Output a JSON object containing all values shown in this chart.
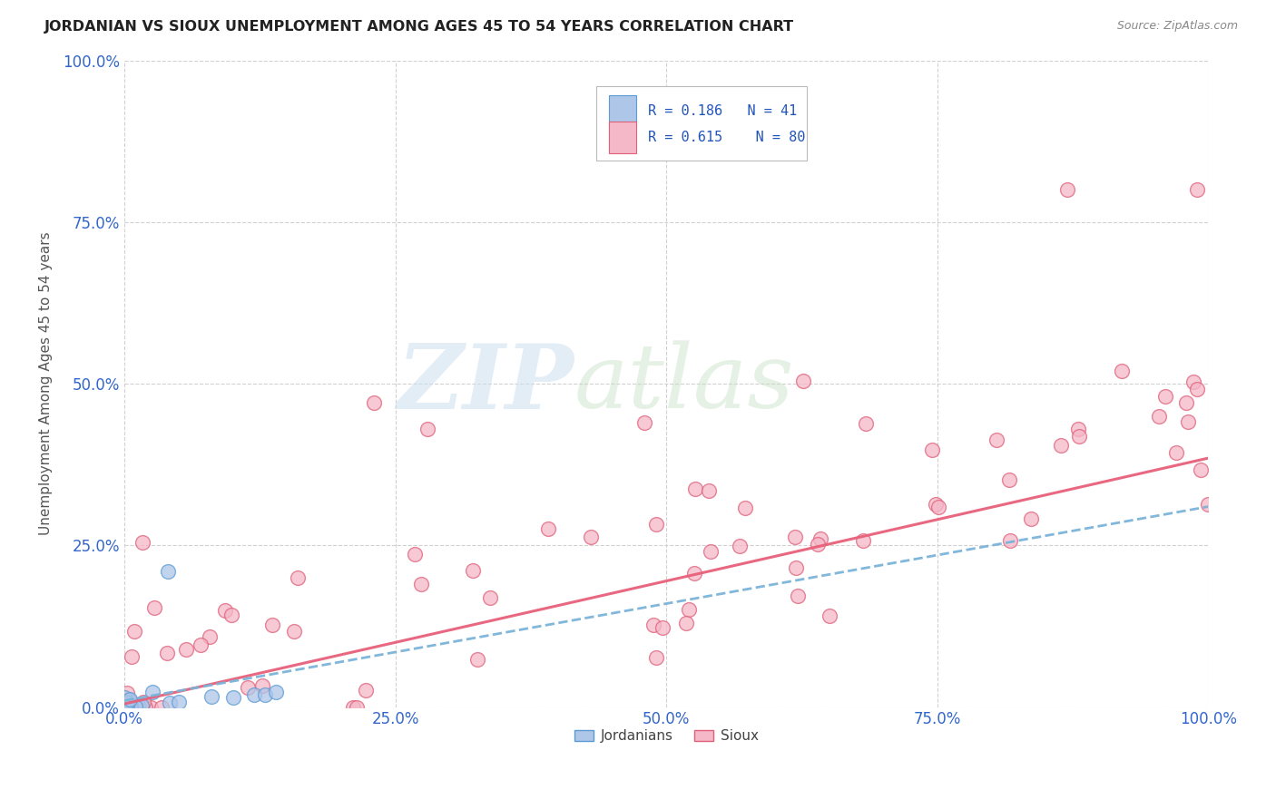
{
  "title": "JORDANIAN VS SIOUX UNEMPLOYMENT AMONG AGES 45 TO 54 YEARS CORRELATION CHART",
  "source": "Source: ZipAtlas.com",
  "ylabel": "Unemployment Among Ages 45 to 54 years",
  "xlim": [
    0,
    1
  ],
  "ylim": [
    0,
    1
  ],
  "xticks": [
    0.0,
    0.25,
    0.5,
    0.75,
    1.0
  ],
  "yticks": [
    0.0,
    0.25,
    0.5,
    0.75,
    1.0
  ],
  "xticklabels": [
    "0.0%",
    "25.0%",
    "50.0%",
    "75.0%",
    "100.0%"
  ],
  "yticklabels": [
    "0.0%",
    "25.0%",
    "50.0%",
    "75.0%",
    "100.0%"
  ],
  "legend_R_jordanian": "0.186",
  "legend_N_jordanian": "41",
  "legend_R_sioux": "0.615",
  "legend_N_sioux": "80",
  "jordanian_fill": "#aec6e8",
  "jordanian_edge": "#5b9bd5",
  "sioux_fill": "#f4b8c8",
  "sioux_edge": "#e0607a",
  "sioux_line_color": "#e8607a",
  "jordanian_line_color": "#7ab3d8",
  "background_color": "#ffffff",
  "grid_color": "#cccccc",
  "title_color": "#222222",
  "axis_label_color": "#555555",
  "tick_label_color": "#3366cc",
  "legend_text_color": "#2255bb",
  "watermark_zip_color": "#c8dff0",
  "watermark_atlas_color": "#d0e8d0",
  "sioux_line_intercept": 0.005,
  "sioux_line_slope": 0.38,
  "jordanian_line_intercept": 0.01,
  "jordanian_line_slope": 0.3
}
